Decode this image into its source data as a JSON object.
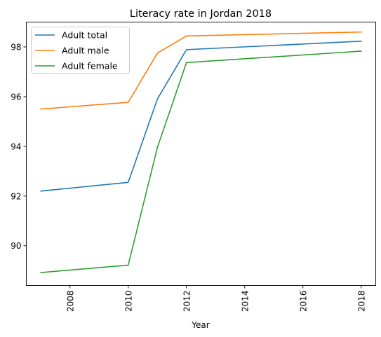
{
  "chart_data": {
    "type": "line",
    "title": "Literacy rate in Jordan 2018",
    "xlabel": "Year",
    "ylabel": "",
    "xlim": [
      2006.5,
      2018.5
    ],
    "ylim": [
      88.4,
      99.0
    ],
    "x_ticks": [
      2008,
      2010,
      2012,
      2014,
      2016,
      2018
    ],
    "x_tick_labels": [
      "2008",
      "2010",
      "2012",
      "2014",
      "2016",
      "2018"
    ],
    "x_tick_rotation": "vertical",
    "y_ticks": [
      90,
      92,
      94,
      96,
      98
    ],
    "y_tick_labels": [
      "90",
      "92",
      "94",
      "96",
      "98"
    ],
    "grid": false,
    "legend_position": "upper-left",
    "x": [
      2007,
      2010,
      2011,
      2012,
      2018
    ],
    "series": [
      {
        "name": "Adult total",
        "color": "#1f77b4",
        "values": [
          92.2,
          92.55,
          95.9,
          97.89,
          98.23
        ]
      },
      {
        "name": "Adult male",
        "color": "#ff7f0e",
        "values": [
          95.5,
          95.77,
          97.75,
          98.44,
          98.6
        ]
      },
      {
        "name": "Adult female",
        "color": "#2ca02c",
        "values": [
          88.92,
          89.22,
          93.95,
          97.37,
          97.83
        ]
      }
    ]
  }
}
